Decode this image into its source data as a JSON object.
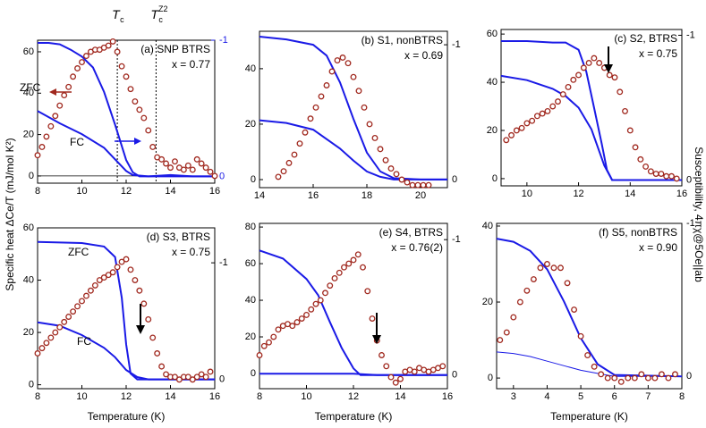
{
  "chart_data": [
    {
      "type": "scatter",
      "title": "(a) SNP BTRS",
      "annotation": "x = 0.77",
      "ylabel": "Specific heat ΔCe/T (mJ/mol K²)",
      "zero_line": true,
      "y2_color": "#1a1ae6",
      "xlim": [
        8,
        16
      ],
      "xticks": [
        8,
        10,
        12,
        14,
        16
      ],
      "ylim": [
        -3.5,
        65.6
      ],
      "yticks": [
        0,
        20,
        40,
        60
      ],
      "y2lim": [
        0.05,
        -1
      ],
      "y2ticks": [
        -1,
        0
      ],
      "vlines": [
        {
          "x": 11.6,
          "label": "T",
          "sub": "c"
        },
        {
          "x": 13.35,
          "label": "T",
          "sub": "c",
          "sup": "Z2"
        }
      ],
      "color": "#a0281e",
      "x": [
        8.0,
        8.2,
        8.4,
        8.6,
        8.8,
        9.0,
        9.2,
        9.4,
        9.6,
        9.8,
        10.0,
        10.2,
        10.4,
        10.6,
        10.8,
        11.0,
        11.2,
        11.4,
        11.6,
        11.8,
        12.0,
        12.2,
        12.4,
        12.6,
        12.8,
        13.0,
        13.2,
        13.4,
        13.6,
        13.8,
        14.0,
        14.2,
        14.4,
        14.6,
        14.8,
        15.0,
        15.2,
        15.4,
        15.6,
        15.8,
        16.0
      ],
      "values": [
        10,
        14,
        19,
        24,
        29,
        34,
        39,
        43,
        48,
        52,
        55,
        58,
        60,
        61,
        61,
        62,
        63,
        65,
        60,
        53,
        48,
        42,
        36,
        32,
        28,
        22,
        14,
        9,
        8,
        6,
        4,
        7,
        4,
        3,
        5,
        3,
        8,
        6,
        4,
        2,
        0
      ],
      "series": [
        {
          "name": "ZFC",
          "color": "#1a1ae6",
          "axis": "y2",
          "x": [
            8,
            8.5,
            9,
            9.5,
            10,
            10.5,
            11,
            11.5,
            12,
            12.3,
            12.6,
            13,
            14,
            15,
            16
          ],
          "values": [
            -0.98,
            -0.98,
            -0.97,
            -0.93,
            -0.88,
            -0.8,
            -0.62,
            -0.38,
            -0.12,
            -0.03,
            0,
            0,
            -0.01,
            0,
            0
          ]
        },
        {
          "name": "FC",
          "color": "#1a1ae6",
          "axis": "y2",
          "x": [
            8,
            9,
            10,
            11,
            11.5,
            12,
            12.3,
            13,
            16
          ],
          "values": [
            -0.48,
            -0.39,
            -0.31,
            -0.21,
            -0.125,
            -0.04,
            -0.01,
            0,
            0
          ]
        }
      ]
    },
    {
      "type": "scatter",
      "title": "(b) S1, nonBTRS",
      "annotation": "x = 0.69",
      "xlim": [
        14,
        21
      ],
      "xticks": [
        14,
        16,
        18,
        20
      ],
      "ylim": [
        -2.9,
        53.5
      ],
      "yticks": [
        0,
        20,
        40
      ],
      "y2lim": [
        0.06,
        -1.1
      ],
      "y2ticks": [
        -1,
        0
      ],
      "color": "#a0281e",
      "x": [
        14.7,
        14.9,
        15.1,
        15.3,
        15.5,
        15.7,
        15.9,
        16.1,
        16.3,
        16.5,
        16.7,
        16.9,
        17.1,
        17.3,
        17.5,
        17.7,
        17.9,
        18.1,
        18.3,
        18.5,
        18.7,
        18.9,
        19.1,
        19.3,
        19.5,
        19.7,
        19.9,
        20.1,
        20.3
      ],
      "values": [
        1,
        3,
        6,
        9,
        13,
        17,
        22,
        26,
        30,
        34,
        39,
        43,
        44,
        42,
        37,
        32,
        26,
        20,
        15,
        11,
        7,
        4,
        2,
        0,
        -1,
        -2,
        -2,
        -2,
        -2
      ],
      "series": [
        {
          "color": "#1a1ae6",
          "axis": "y2",
          "x": [
            14,
            15,
            16,
            16.5,
            17,
            17.5,
            18,
            18.5,
            19,
            20,
            21
          ],
          "values": [
            -1.06,
            -1.04,
            -1.0,
            -0.92,
            -0.72,
            -0.45,
            -0.2,
            -0.06,
            -0.01,
            0,
            0
          ]
        },
        {
          "color": "#1a1ae6",
          "axis": "y2",
          "x": [
            14,
            15,
            16,
            17,
            17.5,
            18,
            18.5,
            19,
            21
          ],
          "values": [
            -0.44,
            -0.42,
            -0.37,
            -0.23,
            -0.14,
            -0.06,
            -0.02,
            0,
            0
          ]
        }
      ]
    },
    {
      "type": "scatter",
      "title": "(c) S2, BTRS",
      "annotation": "x = 0.75",
      "y2label": "Susceptibility, 4πχ@5Oe||ab",
      "xlim": [
        9,
        16
      ],
      "xticks": [
        10,
        12,
        14,
        16
      ],
      "ylim": [
        -3,
        61.9
      ],
      "yticks": [
        0,
        20,
        40,
        60
      ],
      "y2lim": [
        0.04,
        -1.04
      ],
      "y2ticks": [
        -1,
        0
      ],
      "color": "#a0281e",
      "x": [
        9.2,
        9.4,
        9.6,
        9.8,
        10.0,
        10.2,
        10.4,
        10.6,
        10.8,
        11.0,
        11.2,
        11.4,
        11.6,
        11.8,
        12.0,
        12.2,
        12.4,
        12.6,
        12.8,
        13.0,
        13.2,
        13.4,
        13.6,
        13.8,
        14.0,
        14.2,
        14.4,
        14.6,
        14.8,
        15.0,
        15.2,
        15.4,
        15.6,
        15.8
      ],
      "values": [
        16,
        18,
        20,
        21,
        23,
        24,
        26,
        27,
        28,
        30,
        32,
        35,
        38,
        41,
        43,
        46,
        48,
        50,
        48,
        46,
        43,
        42,
        36,
        28,
        20,
        13,
        8,
        5,
        3,
        2,
        2,
        1,
        1,
        0
      ],
      "series": [
        {
          "color": "#1a1ae6",
          "axis": "y2",
          "x": [
            9,
            10,
            11,
            11.5,
            12,
            12.3,
            12.6,
            12.9,
            13.1,
            13.3,
            14,
            16
          ],
          "values": [
            -0.96,
            -0.96,
            -0.95,
            -0.95,
            -0.9,
            -0.75,
            -0.5,
            -0.25,
            -0.07,
            0,
            0,
            0
          ]
        },
        {
          "color": "#1a1ae6",
          "axis": "y2",
          "x": [
            9,
            10,
            11,
            11.5,
            12,
            12.5,
            13,
            13.3,
            16
          ],
          "values": [
            -0.72,
            -0.69,
            -0.63,
            -0.58,
            -0.5,
            -0.35,
            -0.1,
            0,
            0
          ]
        }
      ]
    },
    {
      "type": "scatter",
      "title": "(d) S3, BTRS",
      "annotation": "x = 0.75",
      "xlabel": "Temperature (K)",
      "xlim": [
        8,
        16
      ],
      "xticks": [
        8,
        10,
        12,
        14,
        16
      ],
      "ylim": [
        -1.5,
        60
      ],
      "yticks": [
        0,
        20,
        40,
        60
      ],
      "y2lim": [
        0.08,
        -1.3
      ],
      "y2ticks": [
        -1,
        0
      ],
      "color": "#a0281e",
      "x": [
        8.0,
        8.2,
        8.4,
        8.6,
        8.8,
        9.0,
        9.2,
        9.4,
        9.6,
        9.8,
        10.0,
        10.2,
        10.4,
        10.6,
        10.8,
        11.0,
        11.2,
        11.4,
        11.6,
        11.8,
        12.0,
        12.2,
        12.4,
        12.6,
        12.8,
        13.0,
        13.2,
        13.4,
        13.6,
        13.8,
        14.0,
        14.2,
        14.4,
        14.6,
        14.8,
        15.0,
        15.2,
        15.4,
        15.6,
        15.8
      ],
      "values": [
        12,
        14,
        16,
        18,
        20,
        22,
        24,
        26,
        28,
        30,
        32,
        34,
        36,
        38,
        40,
        41,
        42,
        43,
        45,
        47,
        48,
        44,
        40,
        36,
        31,
        25,
        18,
        12,
        7,
        4,
        3,
        3,
        2,
        3,
        3,
        2,
        3,
        4,
        3,
        5
      ],
      "series": [
        {
          "name": "ZFC",
          "color": "#1a1ae6",
          "axis": "y2",
          "x": [
            8,
            10,
            11,
            11.5,
            11.8,
            12,
            12.2,
            12.5,
            16
          ],
          "values": [
            -1.18,
            -1.17,
            -1.14,
            -1.05,
            -0.7,
            -0.3,
            -0.05,
            0,
            0
          ]
        },
        {
          "name": "FC",
          "color": "#1a1ae6",
          "axis": "y2",
          "x": [
            8,
            9,
            10,
            11,
            11.5,
            12,
            12.5,
            13,
            16
          ],
          "values": [
            -0.49,
            -0.46,
            -0.38,
            -0.27,
            -0.19,
            -0.08,
            -0.02,
            0,
            0
          ]
        }
      ]
    },
    {
      "type": "scatter",
      "title": "(e) S4, BTRS",
      "annotation": "x = 0.76(2)",
      "xlabel": "Temperature (K)",
      "xlim": [
        8,
        16
      ],
      "xticks": [
        8,
        10,
        12,
        14,
        16
      ],
      "ylim": [
        -8.3,
        82
      ],
      "yticks": [
        0,
        20,
        40,
        60,
        80
      ],
      "y2lim": [
        0.1,
        -1.12
      ],
      "y2ticks": [
        -1,
        0
      ],
      "color": "#a0281e",
      "x": [
        8.0,
        8.2,
        8.4,
        8.6,
        8.8,
        9.0,
        9.2,
        9.4,
        9.6,
        9.8,
        10.0,
        10.2,
        10.4,
        10.6,
        10.8,
        11.0,
        11.2,
        11.4,
        11.6,
        11.8,
        12.0,
        12.2,
        12.4,
        12.6,
        12.8,
        13.0,
        13.2,
        13.4,
        13.6,
        13.8,
        14.0,
        14.2,
        14.4,
        14.6,
        14.8,
        15.0,
        15.2,
        15.4,
        15.6,
        15.8
      ],
      "values": [
        10,
        15,
        17,
        20,
        24,
        26,
        27,
        26,
        28,
        30,
        32,
        35,
        38,
        40,
        44,
        48,
        52,
        55,
        58,
        60,
        62,
        65,
        58,
        45,
        30,
        18,
        10,
        4,
        -2,
        -5,
        -3,
        1,
        2,
        1,
        3,
        2,
        1,
        2,
        3,
        4
      ],
      "series": [
        {
          "color": "#1a1ae6",
          "axis": "y2",
          "x": [
            8,
            9,
            10,
            10.5,
            11,
            11.5,
            12,
            12.3,
            16
          ],
          "values": [
            -0.92,
            -0.86,
            -0.71,
            -0.59,
            -0.39,
            -0.2,
            -0.05,
            0,
            0
          ]
        },
        {
          "color": "#1a1ae6",
          "axis": "y2",
          "x": [
            8,
            10,
            12,
            13,
            16
          ],
          "values": [
            -0.01,
            -0.01,
            -0.01,
            0,
            0
          ]
        }
      ]
    },
    {
      "type": "scatter",
      "title": "(f) S5, nonBTRS",
      "annotation": "x = 0.90",
      "xlabel": "Temperature (K)",
      "xlim": [
        2.5,
        8
      ],
      "xticks": [
        3,
        4,
        5,
        6,
        7,
        8
      ],
      "ylim": [
        -2.8,
        40.7
      ],
      "yticks": [
        0,
        20,
        40
      ],
      "y2lim": [
        0.08,
        -1.0
      ],
      "y2ticks": [
        -1,
        0
      ],
      "color": "#a0281e",
      "x": [
        2.6,
        2.8,
        3.0,
        3.2,
        3.4,
        3.6,
        3.8,
        4.0,
        4.2,
        4.4,
        4.6,
        4.8,
        5.0,
        5.2,
        5.4,
        5.6,
        5.8,
        6.0,
        6.2,
        6.4,
        6.6,
        6.8,
        7.0,
        7.2,
        7.4,
        7.6,
        7.8
      ],
      "values": [
        10,
        12,
        16,
        20,
        23,
        26,
        29,
        30,
        29,
        29,
        25,
        18,
        11,
        6,
        3,
        1,
        0,
        0,
        -1,
        0,
        0,
        1,
        0,
        0,
        1,
        0,
        1
      ],
      "series": [
        {
          "color": "#1a1ae6",
          "axis": "y2",
          "x": [
            2.5,
            3,
            3.5,
            4,
            4.5,
            5,
            5.5,
            6,
            8
          ],
          "values": [
            -0.9,
            -0.88,
            -0.82,
            -0.7,
            -0.49,
            -0.25,
            -0.08,
            -0.01,
            0
          ]
        },
        {
          "color": "#1a1ae6",
          "axis": "y2",
          "width": 1,
          "x": [
            2.5,
            3,
            3.5,
            4,
            4.5,
            5,
            5.5,
            6,
            8
          ],
          "values": [
            -0.16,
            -0.15,
            -0.13,
            -0.1,
            -0.07,
            -0.04,
            -0.02,
            0,
            0
          ]
        }
      ]
    }
  ]
}
